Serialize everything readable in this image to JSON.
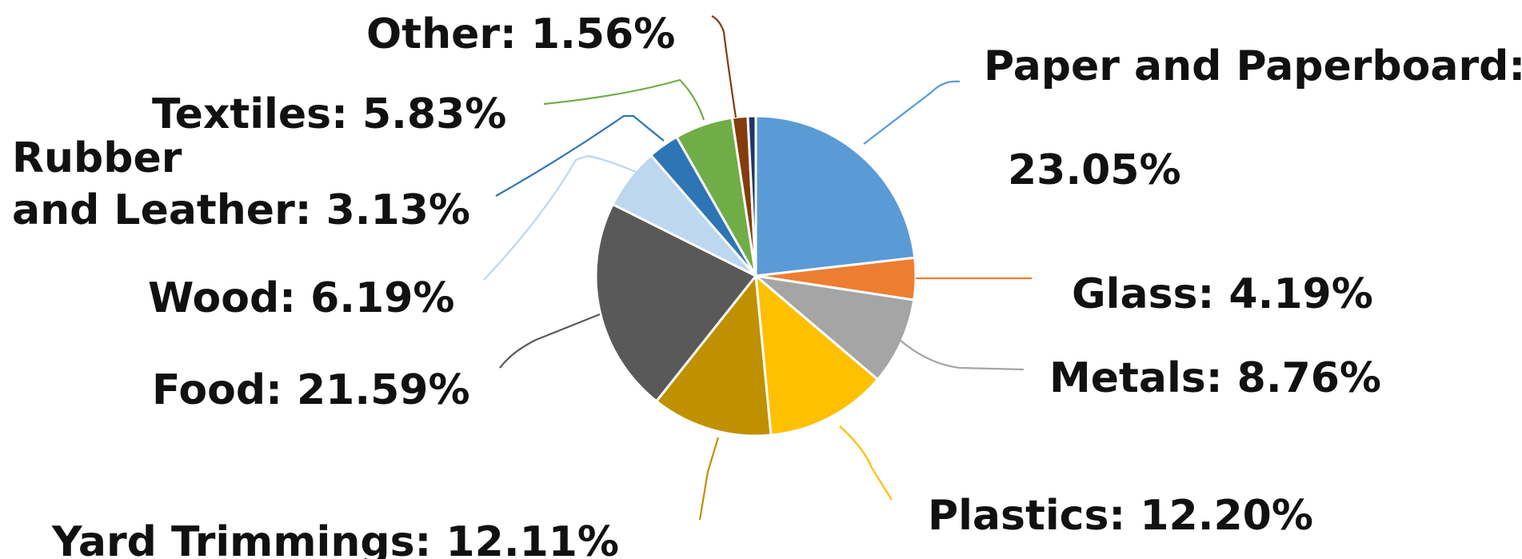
{
  "chart_data": {
    "type": "pie",
    "title": "",
    "start_angle_deg": 0,
    "direction": "clockwise",
    "slices": [
      {
        "label": "Paper and Paperboard",
        "value": 23.05,
        "label_text": "Paper and Paperboard: 23.05%",
        "color": "#5B9BD5"
      },
      {
        "label": "Glass",
        "value": 4.19,
        "label_text": "Glass: 4.19%",
        "color": "#ED7D31"
      },
      {
        "label": "Metals",
        "value": 8.76,
        "label_text": "Metals: 8.76%",
        "color": "#A5A5A5"
      },
      {
        "label": "Plastics",
        "value": 12.2,
        "label_text": "Plastics: 12.20%",
        "color": "#FFC000"
      },
      {
        "label": "Yard Trimmings",
        "value": 12.11,
        "label_text": "Yard Trimmings: 12.11%",
        "color": "#BF9000"
      },
      {
        "label": "Food",
        "value": 21.59,
        "label_text": "Food: 21.59%",
        "color": "#595959"
      },
      {
        "label": "Wood",
        "value": 6.19,
        "label_text": "Wood: 6.19%",
        "color": "#BDD7EE"
      },
      {
        "label": "Rubber and Leather",
        "value": 3.13,
        "label_text": "Rubber and Leather: 3.13%",
        "color": "#2E75B6"
      },
      {
        "label": "Textiles",
        "value": 5.83,
        "label_text": "Textiles: 5.83%",
        "color": "#70AD47"
      },
      {
        "label": "Other",
        "value": 1.56,
        "label_text": "Other: 1.56%",
        "color": "#843C0C"
      },
      {
        "label": "",
        "value": 0.8,
        "label_text": "",
        "color": "#1F3864"
      }
    ]
  }
}
